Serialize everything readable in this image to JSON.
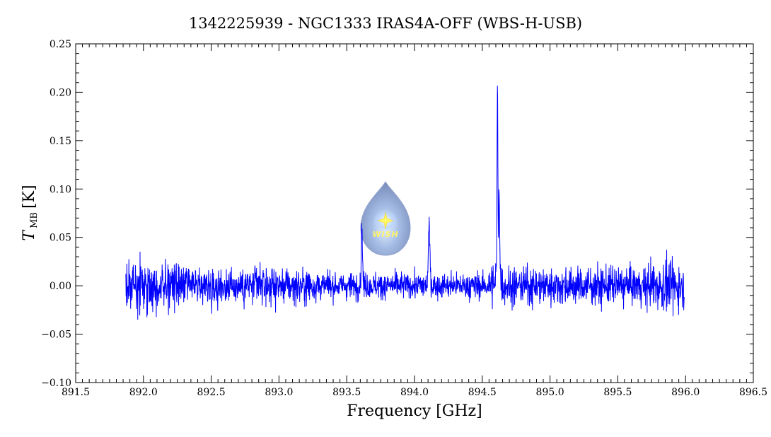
{
  "chart_data": {
    "type": "line",
    "title": "1342225939 - NGC1333 IRAS4A-OFF (WBS-H-USB)",
    "xlabel": "Frequency [GHz]",
    "ylabel_main": "T",
    "ylabel_sub": "MB",
    "ylabel_unit": "[K]",
    "xlim": [
      891.5,
      896.5
    ],
    "ylim": [
      -0.1,
      0.25
    ],
    "x_ticks": [
      "891.5",
      "892.0",
      "892.5",
      "893.0",
      "893.5",
      "894.0",
      "894.5",
      "895.0",
      "895.5",
      "896.0",
      "896.5"
    ],
    "y_ticks": [
      "−0.10",
      "−0.05",
      "0.00",
      "0.05",
      "0.10",
      "0.15",
      "0.20",
      "0.25"
    ],
    "line_color": "#0000ff",
    "grid": false,
    "logo_text": "WISH",
    "series": [
      {
        "x": [
          891.87,
          891.9,
          891.93,
          891.96,
          891.99,
          892.0,
          892.05,
          892.1,
          892.15,
          892.2,
          892.25,
          892.3,
          892.35,
          892.4,
          892.45,
          892.5,
          892.55,
          892.6,
          892.65,
          892.7,
          892.75,
          892.8,
          892.85,
          892.9,
          892.95,
          893.0,
          893.05,
          893.1,
          893.15,
          893.2,
          893.25,
          893.3,
          893.35,
          893.4,
          893.45,
          893.5,
          893.55,
          893.58,
          893.6,
          893.61,
          893.62,
          893.63,
          893.65,
          893.7,
          893.75,
          893.8,
          893.85,
          893.9,
          893.95,
          894.0,
          894.05,
          894.08,
          894.1,
          894.11,
          894.12,
          894.14,
          894.2,
          894.25,
          894.3,
          894.35,
          894.4,
          894.45,
          894.5,
          894.55,
          894.58,
          894.6,
          894.61,
          894.62,
          894.63,
          894.65,
          894.67,
          894.7,
          894.75,
          894.8,
          894.85,
          894.9,
          894.95,
          895.0,
          895.05,
          895.1,
          895.15,
          895.2,
          895.25,
          895.3,
          895.35,
          895.4,
          895.45,
          895.5,
          895.55,
          895.6,
          895.65,
          895.7,
          895.75,
          895.8,
          895.85,
          895.9,
          895.95,
          895.99
        ],
        "y": [
          0.01,
          -0.02,
          0.02,
          -0.03,
          0.01,
          0.0,
          0.02,
          -0.01,
          0.01,
          -0.02,
          0.0,
          0.02,
          -0.01,
          0.01,
          0.0,
          -0.02,
          0.01,
          0.0,
          -0.01,
          0.02,
          0.0,
          -0.01,
          0.01,
          0.0,
          -0.01,
          0.01,
          0.0,
          0.01,
          -0.01,
          0.0,
          0.01,
          -0.01,
          0.0,
          0.01,
          0.0,
          -0.01,
          0.01,
          0.02,
          0.06,
          0.05,
          0.02,
          0.0,
          0.01,
          -0.01,
          0.0,
          0.01,
          -0.01,
          0.0,
          0.01,
          0.0,
          0.02,
          0.03,
          0.06,
          0.05,
          0.02,
          0.0,
          0.01,
          0.0,
          -0.01,
          0.0,
          0.01,
          0.0,
          0.01,
          0.02,
          0.04,
          0.2,
          0.19,
          0.09,
          0.05,
          0.02,
          0.01,
          0.0,
          -0.01,
          0.01,
          0.0,
          -0.01,
          0.01,
          0.0,
          0.02,
          -0.01,
          0.0,
          0.01,
          -0.02,
          0.0,
          0.01,
          -0.01,
          0.02,
          0.0,
          -0.01,
          0.01,
          0.0,
          -0.02,
          0.01,
          0.0,
          0.01,
          -0.01,
          -0.03,
          0.01
        ]
      }
    ]
  }
}
